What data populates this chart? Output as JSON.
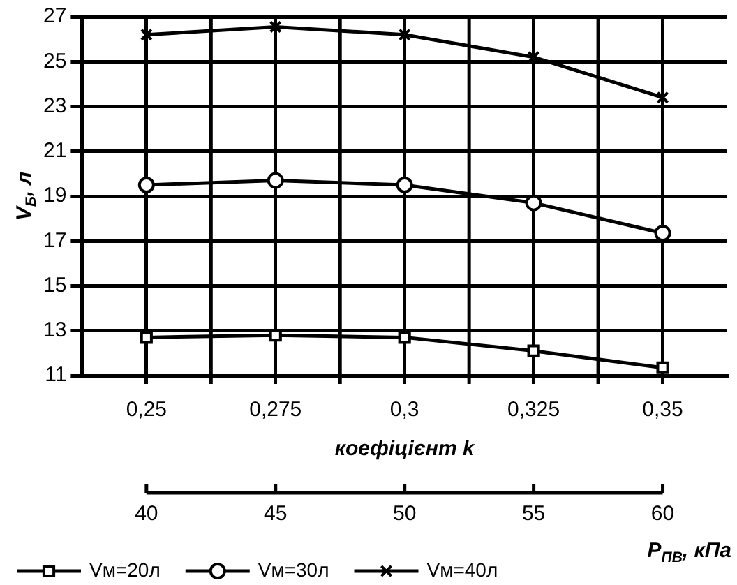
{
  "chart_data": {
    "type": "line",
    "xlabel": "коефіцієнт k",
    "ylabel": "V$_{Б}$, л",
    "x2label": "Р$_{ПВ}$, кПа",
    "categories": [
      "0,25",
      "0,275",
      "0,3",
      "0,325",
      "0,35"
    ],
    "x2lim": [
      40,
      60
    ],
    "x2ticks": [
      40,
      45,
      50,
      55,
      60
    ],
    "ylim": [
      11,
      27
    ],
    "yticks": [
      11,
      13,
      15,
      17,
      19,
      21,
      23,
      25,
      27
    ],
    "grid": true,
    "legend": "bottom",
    "line_style": "solid",
    "series": [
      {
        "name": "Vм=20л",
        "color": "#000000",
        "marker": "square",
        "values": [
          12.7,
          12.8,
          12.7,
          12.1,
          11.35
        ]
      },
      {
        "name": "Vм=30л",
        "color": "#000000",
        "marker": "circle",
        "values": [
          19.5,
          19.7,
          19.5,
          18.7,
          17.35
        ]
      },
      {
        "name": "Vм=40л",
        "color": "#000000",
        "marker": "cross",
        "values": [
          26.2,
          26.55,
          26.2,
          25.2,
          23.4
        ]
      }
    ]
  }
}
